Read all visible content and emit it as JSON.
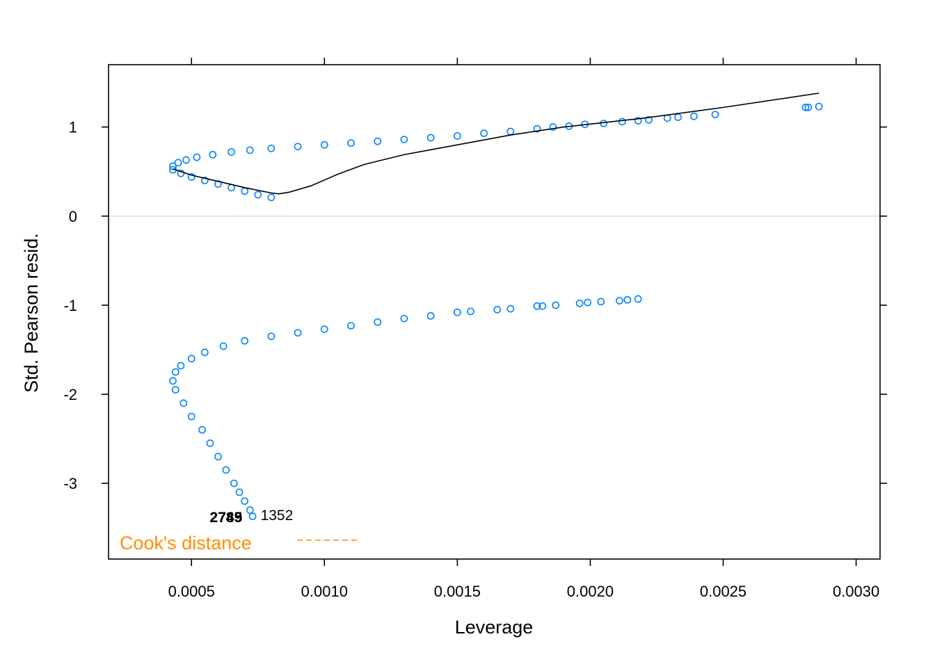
{
  "chart_data": {
    "type": "scatter",
    "title": "",
    "xlabel": "Leverage",
    "ylabel": "Std. Pearson resid.",
    "xlim": [
      0.000188,
      0.00309
    ],
    "ylim": [
      -3.85,
      1.7
    ],
    "x_ticks": [
      {
        "value": 0.0005,
        "label": "0.0005"
      },
      {
        "value": 0.001,
        "label": "0.0010"
      },
      {
        "value": 0.0015,
        "label": "0.0015"
      },
      {
        "value": 0.002,
        "label": "0.0020"
      },
      {
        "value": 0.0025,
        "label": "0.0025"
      },
      {
        "value": 0.003,
        "label": "0.0030"
      }
    ],
    "y_ticks": [
      {
        "value": -3,
        "label": "-3"
      },
      {
        "value": -2,
        "label": "-2"
      },
      {
        "value": -1,
        "label": "-1"
      },
      {
        "value": 0,
        "label": "0"
      },
      {
        "value": 1,
        "label": "1"
      }
    ],
    "reference_line_y": 0,
    "grid": false,
    "point_color": "#0080ff",
    "smooth_color": "#000000",
    "cooks_color": "#ff8c00",
    "legend": {
      "label": "Cook's distance",
      "position": "bottom-left",
      "line_style": "dashed"
    },
    "series": [
      {
        "marker": "open-circle",
        "points": [
          [
            0.0008,
            0.21
          ],
          [
            0.00075,
            0.24
          ],
          [
            0.0007,
            0.28
          ],
          [
            0.00065,
            0.32
          ],
          [
            0.0006,
            0.36
          ],
          [
            0.00055,
            0.4
          ],
          [
            0.0005,
            0.44
          ],
          [
            0.00046,
            0.48
          ],
          [
            0.00043,
            0.52
          ],
          [
            0.00043,
            0.56
          ],
          [
            0.00045,
            0.6
          ],
          [
            0.00048,
            0.63
          ],
          [
            0.00052,
            0.66
          ],
          [
            0.00058,
            0.69
          ],
          [
            0.00065,
            0.72
          ],
          [
            0.00072,
            0.74
          ],
          [
            0.0008,
            0.76
          ],
          [
            0.0009,
            0.78
          ],
          [
            0.001,
            0.8
          ],
          [
            0.0011,
            0.82
          ],
          [
            0.0012,
            0.84
          ],
          [
            0.0013,
            0.86
          ],
          [
            0.0014,
            0.88
          ],
          [
            0.0015,
            0.9
          ],
          [
            0.0016,
            0.93
          ],
          [
            0.0017,
            0.95
          ],
          [
            0.0018,
            0.98
          ],
          [
            0.00186,
            1.0
          ],
          [
            0.00192,
            1.01
          ],
          [
            0.00198,
            1.03
          ],
          [
            0.00205,
            1.04
          ],
          [
            0.00212,
            1.06
          ],
          [
            0.00218,
            1.07
          ],
          [
            0.00222,
            1.08
          ],
          [
            0.00229,
            1.1
          ],
          [
            0.00233,
            1.11
          ],
          [
            0.00239,
            1.12
          ],
          [
            0.00247,
            1.14
          ],
          [
            0.00281,
            1.22
          ],
          [
            0.00282,
            1.22
          ],
          [
            0.00286,
            1.23
          ],
          [
            0.00073,
            -3.37
          ],
          [
            0.00072,
            -3.3
          ],
          [
            0.0007,
            -3.2
          ],
          [
            0.00068,
            -3.1
          ],
          [
            0.00066,
            -3.0
          ],
          [
            0.00063,
            -2.85
          ],
          [
            0.0006,
            -2.7
          ],
          [
            0.00057,
            -2.55
          ],
          [
            0.00054,
            -2.4
          ],
          [
            0.0005,
            -2.25
          ],
          [
            0.00047,
            -2.1
          ],
          [
            0.00044,
            -1.95
          ],
          [
            0.00043,
            -1.85
          ],
          [
            0.00044,
            -1.75
          ],
          [
            0.00046,
            -1.68
          ],
          [
            0.0005,
            -1.6
          ],
          [
            0.00055,
            -1.53
          ],
          [
            0.00062,
            -1.46
          ],
          [
            0.0007,
            -1.4
          ],
          [
            0.0008,
            -1.35
          ],
          [
            0.0009,
            -1.31
          ],
          [
            0.001,
            -1.27
          ],
          [
            0.0011,
            -1.23
          ],
          [
            0.0012,
            -1.19
          ],
          [
            0.0013,
            -1.15
          ],
          [
            0.0014,
            -1.12
          ],
          [
            0.0015,
            -1.08
          ],
          [
            0.00155,
            -1.07
          ],
          [
            0.00165,
            -1.05
          ],
          [
            0.0017,
            -1.04
          ],
          [
            0.0018,
            -1.01
          ],
          [
            0.00182,
            -1.01
          ],
          [
            0.00187,
            -1.0
          ],
          [
            0.00196,
            -0.98
          ],
          [
            0.00199,
            -0.97
          ],
          [
            0.00204,
            -0.96
          ],
          [
            0.00211,
            -0.95
          ],
          [
            0.00214,
            -0.94
          ],
          [
            0.00218,
            -0.93
          ]
        ]
      }
    ],
    "smooth_line": [
      [
        0.00043,
        0.53
      ],
      [
        0.0005,
        0.46
      ],
      [
        0.0006,
        0.39
      ],
      [
        0.0007,
        0.32
      ],
      [
        0.0008,
        0.26
      ],
      [
        0.00083,
        0.25
      ],
      [
        0.00087,
        0.27
      ],
      [
        0.00095,
        0.34
      ],
      [
        0.00105,
        0.47
      ],
      [
        0.00115,
        0.58
      ],
      [
        0.0013,
        0.69
      ],
      [
        0.0015,
        0.8
      ],
      [
        0.0017,
        0.91
      ],
      [
        0.0019,
        1.0
      ],
      [
        0.0022,
        1.1
      ],
      [
        0.0025,
        1.22
      ],
      [
        0.00286,
        1.38
      ]
    ],
    "point_labels": [
      {
        "text": "2745",
        "x": 0.00063,
        "y": -3.38,
        "anchor": "middle",
        "weight": "bold"
      },
      {
        "text": "2789",
        "x": 0.00063,
        "y": -3.38,
        "anchor": "middle",
        "weight": "bold"
      },
      {
        "text": "1352",
        "x": 0.00076,
        "y": -3.36,
        "anchor": "start",
        "weight": "normal"
      }
    ]
  }
}
